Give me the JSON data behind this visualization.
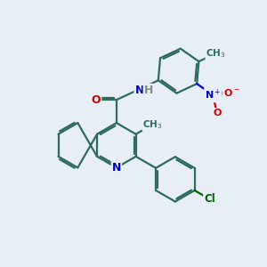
{
  "bg_color": "#e8eef5",
  "bond_color": "#2d6b5e",
  "bond_width": 1.6,
  "atom_colors": {
    "N": "#0000cc",
    "O": "#cc0000",
    "Cl": "#006600",
    "C": "#2d6b5e",
    "H": "#888888"
  },
  "font_size": 8.5,
  "figsize": [
    3.0,
    3.0
  ],
  "dpi": 100
}
